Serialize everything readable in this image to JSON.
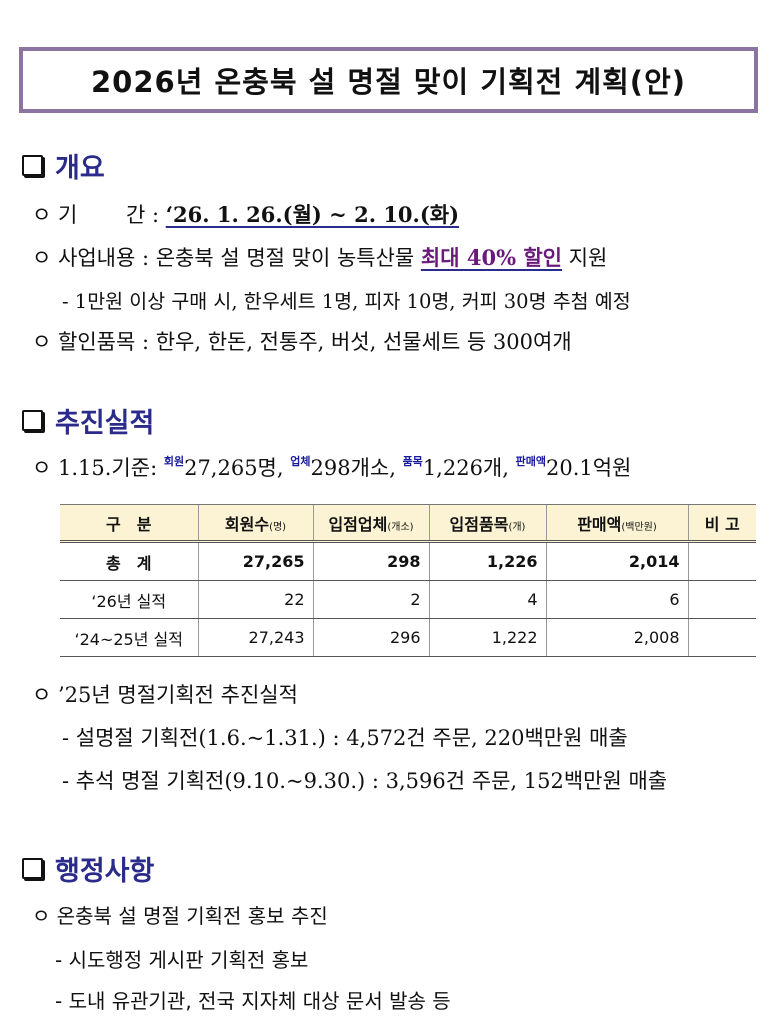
{
  "title": "2026년 온충북 설 명절 맞이 기획전 계획(안)",
  "sections": {
    "overview": {
      "heading": "개요",
      "period_label": "ㅇ 기　　 간 : ",
      "period_value": "‘26. 1. 26.(월) ~ 2. 10.(화)",
      "content_label": "ㅇ 사업내용 : 온충북 설 명절 맞이 농특산물 ",
      "content_highlight": "최대 40% 할인",
      "content_tail": " 지원",
      "content_sub": "- 1만원 이상 구매 시, 한우세트 1명, 피자 10명, 커피 30명 추첨 예정",
      "items": "ㅇ 할인품목 : 한우, 한돈, 전통주, 버섯, 선물세트 등 300여개"
    },
    "results": {
      "heading": "추진실적",
      "summary_prefix": "ㅇ 1.15.기준: ",
      "summary": [
        {
          "tag": "회원",
          "value": "27,265명, "
        },
        {
          "tag": "업체",
          "value": "298개소, "
        },
        {
          "tag": "품목",
          "value": "1,226개, "
        },
        {
          "tag": "판매액",
          "value": "20.1억원"
        }
      ],
      "table": {
        "headers": [
          {
            "main": "구　분",
            "unit": ""
          },
          {
            "main": "회원수",
            "unit": "(명)"
          },
          {
            "main": "입점업체",
            "unit": "(개소)"
          },
          {
            "main": "입점품목",
            "unit": "(개)"
          },
          {
            "main": "판매액",
            "unit": "(백만원)"
          },
          {
            "main": "비 고",
            "unit": ""
          }
        ],
        "rows": [
          [
            "총　계",
            "27,265",
            "298",
            "1,226",
            "2,014",
            ""
          ],
          [
            "‘26년 실적",
            "22",
            "2",
            "4",
            "6",
            ""
          ],
          [
            "‘24~25년 실적",
            "27,243",
            "296",
            "1,222",
            "2,008",
            ""
          ]
        ]
      },
      "prev": "ㅇ ’25년 명절기획전 추진실적",
      "prev_items": [
        "-  설명절 기획전(1.6.~1.31.) : 4,572건 주문, 220백만원 매출",
        "-  추석 명절 기획전(9.10.~9.30.) : 3,596건 주문, 152백만원 매출"
      ]
    },
    "admin": {
      "heading": "행정사항",
      "item": "ㅇ 온충북 설 명절 기획전 홍보 추진",
      "subs": [
        "- 시도행정 게시판 기획전 홍보",
        "- 도내 유관기관, 전국 지자체 대상 문서 발송 등"
      ]
    }
  },
  "colors": {
    "heading": "#2b2b8c",
    "title_border": "#8b74a0",
    "highlight": "#6a1a7a",
    "table_header_bg": "#fbf3d3"
  }
}
